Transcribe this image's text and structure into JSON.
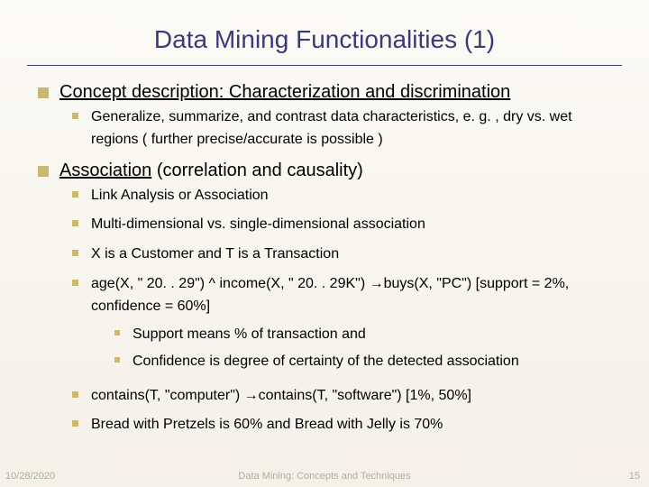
{
  "title": "Data Mining Functionalities (1)",
  "section1": {
    "heading_udl": "Concept description: Characterization and discrimination",
    "sub1": "Generalize, summarize, and contrast data characteristics, e. g. , dry vs. wet regions ( further precise/accurate is possible )"
  },
  "section2": {
    "heading_udl": "Association",
    "heading_rest": " (correlation and causality)",
    "sub1": "Link Analysis or Association",
    "sub2": "Multi-dimensional vs. single-dimensional association",
    "sub3": "X is a Customer and T is a Transaction",
    "sub4": "age(X, \" 20. . 29\") ^ income(X, \" 20. . 29K\") →buys(X, \"PC\") [support = 2%, confidence = 60%]",
    "sub4_a": "Support means % of transaction and",
    "sub4_b": "Confidence is degree of certainty of the detected association",
    "sub5": "contains(T, \"computer\") →contains(T, \"software\") [1%, 50%]",
    "sub6": "Bread with  Pretzels is 60% and   Bread with Jelly is 70%"
  },
  "footer": {
    "date": "10/28/2020",
    "center": "Data Mining: Concepts and Techniques",
    "page": "15"
  },
  "colors": {
    "title": "#3a3a7a",
    "bullet": "#c9b870",
    "bg_top": "#fcfaf5",
    "bg_bottom": "#f5f0e8",
    "footer_text": "rgba(90,90,60,0.45)"
  }
}
